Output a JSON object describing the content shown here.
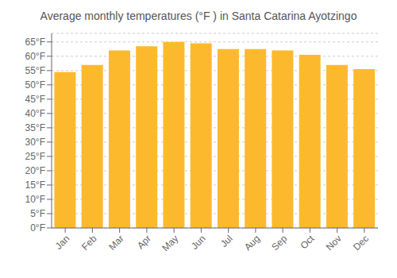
{
  "chart_data": {
    "type": "bar",
    "title": "Average monthly temperatures (°F ) in Santa Catarina Ayotzingo",
    "categories": [
      "Jan",
      "Feb",
      "Mar",
      "Apr",
      "May",
      "Jun",
      "Jul",
      "Aug",
      "Sep",
      "Oct",
      "Nov",
      "Dec"
    ],
    "values": [
      54.5,
      57.0,
      62.0,
      63.5,
      65.0,
      64.5,
      62.5,
      62.5,
      62.0,
      60.5,
      57.0,
      55.5
    ],
    "color": "#FDB92E",
    "ylim": [
      0,
      68
    ],
    "yticks": [
      {
        "value": 0,
        "label": "0°F"
      },
      {
        "value": 5,
        "label": "5°F"
      },
      {
        "value": 10,
        "label": "10°F"
      },
      {
        "value": 15,
        "label": "15°F"
      },
      {
        "value": 20,
        "label": "20°F"
      },
      {
        "value": 25,
        "label": "25°F"
      },
      {
        "value": 30,
        "label": "30°F"
      },
      {
        "value": 35,
        "label": "35°F"
      },
      {
        "value": 40,
        "label": "40°F"
      },
      {
        "value": 45,
        "label": "45°F"
      },
      {
        "value": 50,
        "label": "50°F"
      },
      {
        "value": 55,
        "label": "55°F"
      },
      {
        "value": 60,
        "label": "60°F"
      },
      {
        "value": 65,
        "label": "65°F"
      }
    ],
    "grid": true
  }
}
